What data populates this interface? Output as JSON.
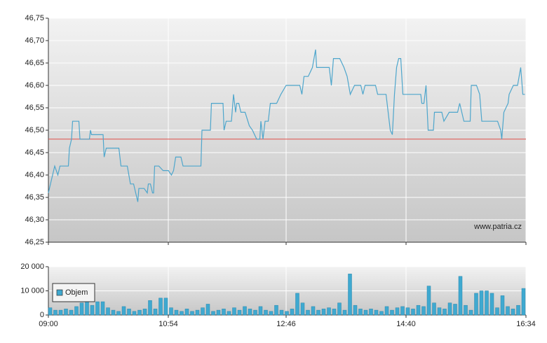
{
  "chart_data": [
    {
      "type": "line",
      "series": [
        {
          "color": "#4ea6cc",
          "x": [
            "09:00",
            "09:02",
            "09:06",
            "09:09",
            "09:11",
            "09:19",
            "09:20",
            "09:22",
            "09:23",
            "09:29",
            "09:30",
            "09:39",
            "09:40",
            "09:41",
            "09:52",
            "09:53",
            "09:55",
            "10:07",
            "10:09",
            "10:15",
            "10:18",
            "10:21",
            "10:25",
            "10:26",
            "10:29",
            "10:31",
            "10:34",
            "10:35",
            "10:37",
            "10:39",
            "10:40",
            "10:41",
            "10:45",
            "10:49",
            "10:54",
            "10:57",
            "10:59",
            "11:01",
            "11:06",
            "11:08",
            "11:18",
            "11:21",
            "11:25",
            "11:26",
            "11:34",
            "11:35",
            "11:46",
            "11:47",
            "11:49",
            "11:54",
            "11:56",
            "11:58",
            "11:59",
            "12:01",
            "12:03",
            "12:07",
            "12:11",
            "12:14",
            "12:18",
            "12:21",
            "12:22",
            "12:24",
            "12:26",
            "12:29",
            "12:31",
            "12:37",
            "12:41",
            "12:46",
            "12:54",
            "12:59",
            "13:01",
            "13:03",
            "13:06",
            "13:07",
            "13:11",
            "13:14",
            "13:15",
            "13:27",
            "13:29",
            "13:31",
            "13:37",
            "13:41",
            "13:44",
            "13:47",
            "13:51",
            "13:57",
            "13:59",
            "14:01",
            "14:11",
            "14:13",
            "14:21",
            "14:23",
            "14:25",
            "14:27",
            "14:29",
            "14:31",
            "14:33",
            "14:35",
            "14:37",
            "14:54",
            "14:55",
            "14:57",
            "14:59",
            "15:01",
            "15:06",
            "15:07",
            "15:14",
            "15:16",
            "15:21",
            "15:29",
            "15:31",
            "15:35",
            "15:41",
            "15:42",
            "15:47",
            "15:50",
            "15:52",
            "16:07",
            "16:10",
            "16:11",
            "16:13",
            "16:17",
            "16:18",
            "16:22",
            "16:26",
            "16:29",
            "16:31",
            "16:33"
          ],
          "values": [
            46.36,
            46.38,
            46.42,
            46.4,
            46.42,
            46.42,
            46.46,
            46.48,
            46.52,
            46.52,
            46.48,
            46.48,
            46.5,
            46.49,
            46.49,
            46.44,
            46.46,
            46.46,
            46.42,
            46.42,
            46.38,
            46.38,
            46.34,
            46.37,
            46.37,
            46.37,
            46.36,
            46.38,
            46.38,
            46.36,
            46.36,
            46.42,
            46.42,
            46.41,
            46.41,
            46.4,
            46.41,
            46.44,
            46.44,
            46.42,
            46.42,
            46.42,
            46.42,
            46.5,
            46.5,
            46.56,
            46.56,
            46.5,
            46.52,
            46.52,
            46.58,
            46.54,
            46.56,
            46.56,
            46.54,
            46.54,
            46.51,
            46.5,
            46.48,
            46.48,
            46.52,
            46.48,
            46.52,
            46.52,
            46.56,
            46.56,
            46.58,
            46.6,
            46.6,
            46.6,
            46.58,
            46.62,
            46.62,
            46.62,
            46.64,
            46.68,
            46.64,
            46.64,
            46.6,
            46.66,
            46.66,
            46.64,
            46.62,
            46.58,
            46.6,
            46.6,
            46.58,
            46.6,
            46.6,
            46.58,
            46.58,
            46.54,
            46.5,
            46.49,
            46.58,
            46.64,
            46.66,
            46.66,
            46.58,
            46.58,
            46.56,
            46.56,
            46.6,
            46.5,
            46.5,
            46.54,
            46.54,
            46.52,
            46.54,
            46.54,
            46.56,
            46.52,
            46.52,
            46.6,
            46.6,
            46.58,
            46.52,
            46.52,
            46.5,
            46.48,
            46.54,
            46.56,
            46.58,
            46.6,
            46.6,
            46.64,
            46.58,
            46.58
          ]
        }
      ],
      "reference": {
        "value": 46.48,
        "color": "#e0504a"
      },
      "xlim": [
        "09:00",
        "16:34"
      ],
      "ylim": [
        46.25,
        46.75
      ],
      "yticks": [
        {
          "value": 46.25,
          "label": "46,25"
        },
        {
          "value": 46.3,
          "label": "46,30"
        },
        {
          "value": 46.35,
          "label": "46,35"
        },
        {
          "value": 46.4,
          "label": "46,40"
        },
        {
          "value": 46.45,
          "label": "46,45"
        },
        {
          "value": 46.5,
          "label": "46,50"
        },
        {
          "value": 46.55,
          "label": "46,55"
        },
        {
          "value": 46.6,
          "label": "46,60"
        },
        {
          "value": 46.65,
          "label": "46,65"
        },
        {
          "value": 46.7,
          "label": "46,70"
        },
        {
          "value": 46.75,
          "label": "46,75"
        }
      ],
      "annotation": "www.patria.cz",
      "grid": true
    },
    {
      "type": "bar",
      "series": [
        {
          "name": "Objem",
          "color": "#3fa9d0",
          "x": [
            "09:00",
            "09:05",
            "09:10",
            "09:15",
            "09:20",
            "09:25",
            "09:30",
            "09:35",
            "09:40",
            "09:45",
            "09:50",
            "09:55",
            "10:00",
            "10:05",
            "10:10",
            "10:15",
            "10:20",
            "10:25",
            "10:30",
            "10:35",
            "10:40",
            "10:45",
            "10:50",
            "10:55",
            "11:00",
            "11:05",
            "11:10",
            "11:15",
            "11:20",
            "11:25",
            "11:30",
            "11:35",
            "11:40",
            "11:45",
            "11:50",
            "11:55",
            "12:00",
            "12:05",
            "12:10",
            "12:15",
            "12:20",
            "12:25",
            "12:30",
            "12:35",
            "12:40",
            "12:45",
            "12:50",
            "12:55",
            "13:00",
            "13:05",
            "13:10",
            "13:15",
            "13:20",
            "13:25",
            "13:30",
            "13:35",
            "13:40",
            "13:45",
            "13:50",
            "13:55",
            "14:00",
            "14:05",
            "14:10",
            "14:15",
            "14:20",
            "14:25",
            "14:30",
            "14:35",
            "14:40",
            "14:45",
            "14:50",
            "14:55",
            "15:00",
            "15:05",
            "15:10",
            "15:15",
            "15:20",
            "15:25",
            "15:30",
            "15:35",
            "15:40",
            "15:45",
            "15:50",
            "15:55",
            "16:00",
            "16:05",
            "16:10",
            "16:15",
            "16:20",
            "16:25",
            "16:30"
          ],
          "values": [
            3000,
            2000,
            2000,
            2500,
            2000,
            3500,
            5000,
            5500,
            4000,
            5500,
            5500,
            3000,
            2000,
            1500,
            3500,
            2500,
            1500,
            2000,
            2500,
            6000,
            2500,
            7000,
            7000,
            3000,
            2000,
            1500,
            2500,
            1500,
            2000,
            3000,
            4500,
            1500,
            2000,
            2500,
            1500,
            3000,
            2000,
            3500,
            2500,
            2000,
            3500,
            2000,
            1500,
            4000,
            2000,
            1500,
            2500,
            9000,
            5000,
            2000,
            3500,
            2000,
            2500,
            3000,
            2500,
            5000,
            2000,
            17000,
            4000,
            2500,
            2000,
            2500,
            2000,
            1500,
            3500,
            2000,
            3000,
            3500,
            3000,
            2500,
            4000,
            3500,
            12000,
            5000,
            3000,
            2500,
            5000,
            4500,
            16000,
            4000,
            2000,
            9000,
            10000,
            10000,
            9000,
            3000,
            8000,
            3500,
            2500,
            4000,
            11000
          ]
        }
      ],
      "xlim": [
        "09:00",
        "16:34"
      ],
      "xticks": [
        "09:00",
        "10:54",
        "12:46",
        "14:40",
        "16:34"
      ],
      "ylim": [
        0,
        20000
      ],
      "yticks": [
        0,
        {
          "value": 10000,
          "label": "10 000"
        },
        {
          "value": 20000,
          "label": "20 000"
        }
      ],
      "legend": "upper left",
      "grid": true
    }
  ]
}
